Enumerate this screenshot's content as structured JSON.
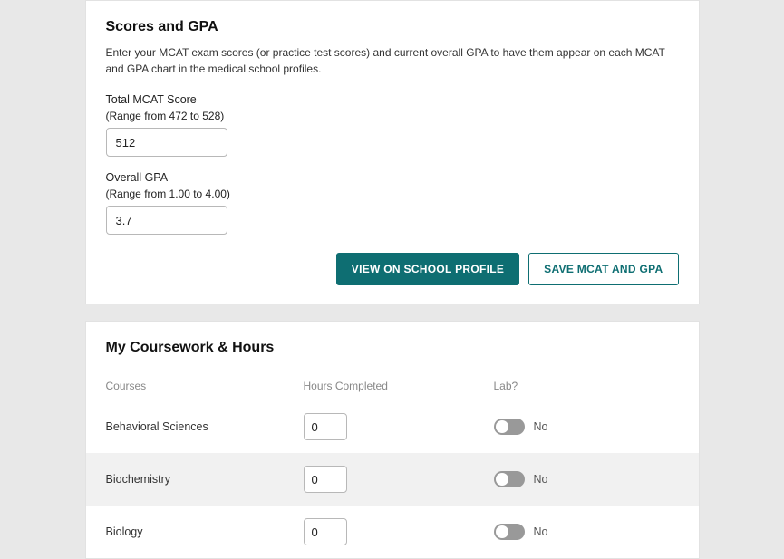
{
  "scores": {
    "title": "Scores and GPA",
    "description": "Enter your MCAT exam scores (or practice test scores) and current overall GPA to have them appear on each MCAT and GPA chart in the medical school profiles.",
    "mcat": {
      "label": "Total MCAT Score",
      "range": "(Range from 472 to 528)",
      "value": "512"
    },
    "gpa": {
      "label": "Overall GPA",
      "range": "(Range from 1.00 to 4.00)",
      "value": "3.7"
    },
    "buttons": {
      "view": "VIEW ON SCHOOL PROFILE",
      "save": "SAVE MCAT AND GPA"
    }
  },
  "coursework": {
    "title": "My Coursework & Hours",
    "headers": {
      "courses": "Courses",
      "hours": "Hours Completed",
      "lab": "Lab?"
    },
    "rows": [
      {
        "name": "Behavioral Sciences",
        "hours": "0",
        "lab": "No",
        "alt": false
      },
      {
        "name": "Biochemistry",
        "hours": "0",
        "lab": "No",
        "alt": true
      },
      {
        "name": "Biology",
        "hours": "0",
        "lab": "No",
        "alt": false
      }
    ]
  },
  "colors": {
    "page_bg": "#e8e8e8",
    "card_bg": "#ffffff",
    "card_border": "#e2e2e2",
    "input_border": "#b8b8b8",
    "primary": "#0e6e72",
    "alt_row": "#f1f1f1",
    "toggle_off": "#999999",
    "header_text": "#888888"
  }
}
